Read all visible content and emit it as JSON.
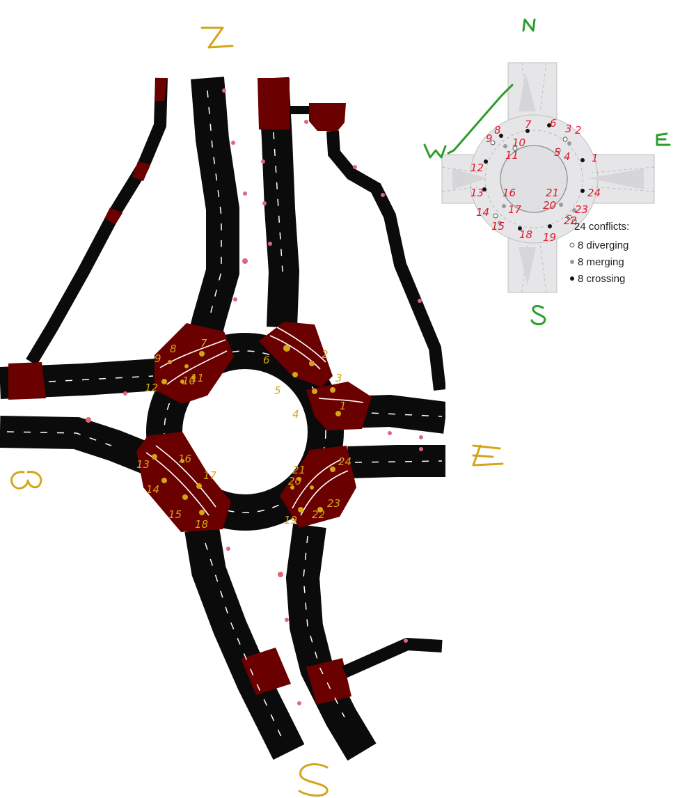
{
  "main_compass": {
    "north": "N",
    "south": "S",
    "east": "E",
    "west": "W"
  },
  "inset": {
    "compass": {
      "north": "N",
      "south": "S",
      "east": "E",
      "west": "W"
    },
    "legend": {
      "title": "24 conflicts:",
      "items": [
        {
          "label": "8 diverging",
          "kind": "diverging",
          "color": "#ffffff"
        },
        {
          "label": "8 merging",
          "kind": "merging",
          "color": "#9a9a9a"
        },
        {
          "label": "8 crossing",
          "kind": "crossing",
          "color": "#111111"
        }
      ]
    },
    "conflict_labels": [
      "1",
      "2",
      "3",
      "4",
      "5",
      "6",
      "7",
      "8",
      "9",
      "10",
      "11",
      "12",
      "13",
      "14",
      "15",
      "16",
      "17",
      "18",
      "19",
      "20",
      "21",
      "22",
      "23",
      "24"
    ]
  },
  "main_conflict_labels": [
    "1",
    "2",
    "3",
    "4",
    "5",
    "6",
    "7",
    "8",
    "9",
    "10",
    "11",
    "12",
    "13",
    "14",
    "15",
    "16",
    "17",
    "18",
    "19",
    "20",
    "21",
    "22",
    "23",
    "24"
  ],
  "colors": {
    "road": "#0b0b0b",
    "conflict_zone": "#6b0000",
    "annotation_gold": "#d4a516",
    "annotation_green": "#2a9d2a",
    "annotation_red": "#e0182c"
  }
}
